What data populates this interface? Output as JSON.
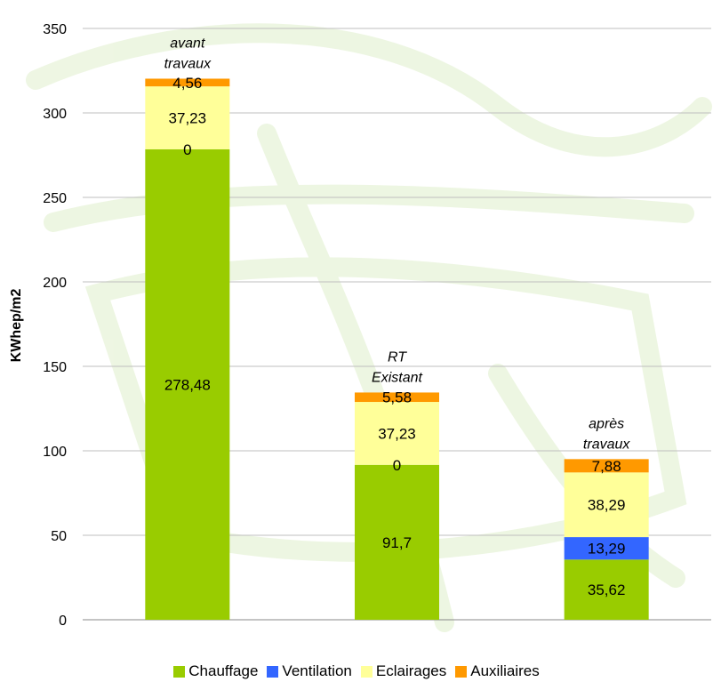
{
  "chart_data": {
    "type": "stacked-bar",
    "categories": [
      "avant travaux",
      "RT Existant",
      "après travaux"
    ],
    "category_annotations": [
      [
        "avant",
        "travaux"
      ],
      [
        "RT",
        "Existant"
      ],
      [
        "après",
        "travaux"
      ]
    ],
    "series": [
      {
        "name": "Chauffage",
        "color": "#99cc00",
        "values": [
          278.48,
          91.7,
          35.62
        ],
        "labels": [
          "278,48",
          "91,7",
          "35,62"
        ]
      },
      {
        "name": "Ventilation",
        "color": "#3366ff",
        "values": [
          0,
          0,
          13.29
        ],
        "labels": [
          "0",
          "0",
          "13,29"
        ]
      },
      {
        "name": "Eclairages",
        "color": "#ffff99",
        "values": [
          37.23,
          37.23,
          38.29
        ],
        "labels": [
          "37,23",
          "37,23",
          "38,29"
        ]
      },
      {
        "name": "Auxiliaires",
        "color": "#ff9900",
        "values": [
          4.56,
          5.58,
          7.88
        ],
        "labels": [
          "4,56",
          "5,58",
          "7,88"
        ]
      }
    ],
    "ylabel": "KWhep/m2",
    "ylim": [
      0,
      350
    ],
    "yticks": [
      0,
      50,
      100,
      150,
      200,
      250,
      300,
      350
    ],
    "grid": true,
    "legend_position": "bottom"
  }
}
